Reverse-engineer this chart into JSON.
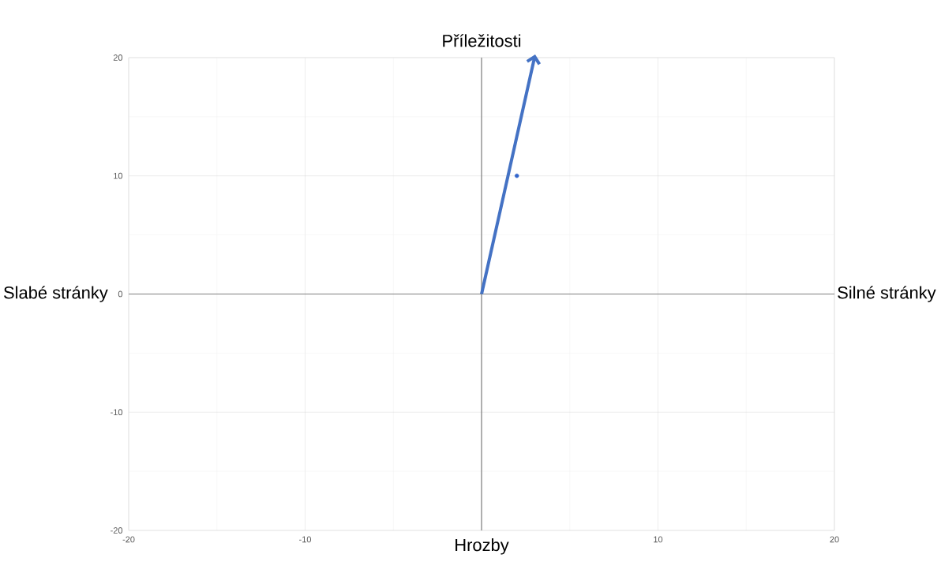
{
  "chart_data": {
    "type": "scatter",
    "title": "Příležitosti",
    "xlabel": "Hrozby",
    "annotations": [
      "Slabé stránky",
      "Silné stránky"
    ],
    "xlim": [
      -20,
      20
    ],
    "ylim": [
      -20,
      20
    ],
    "xticks": [
      -20,
      -10,
      {
        "value": 0,
        "label": null
      },
      10,
      20
    ],
    "yticks": [
      -20,
      -10,
      0,
      10,
      20
    ],
    "grid": true,
    "series": [
      {
        "type": "line",
        "color": "#4472c4",
        "x": [
          0,
          3
        ],
        "values": [
          0,
          20
        ]
      },
      {
        "color": "#3366cc",
        "x": [
          2
        ],
        "values": [
          10
        ]
      }
    ]
  }
}
